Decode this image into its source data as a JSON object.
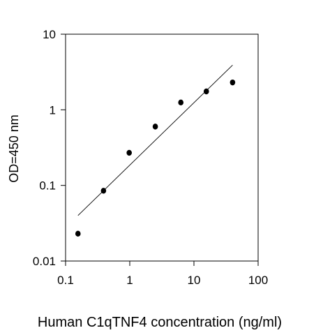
{
  "chart_data": {
    "type": "scatter",
    "title": "",
    "xlabel": "Human C1qTNF4 concentration (ng/ml)",
    "ylabel": "OD=450 nm",
    "x_scale": "log",
    "y_scale": "log",
    "xlim": [
      0.1,
      100
    ],
    "ylim": [
      0.01,
      10
    ],
    "x_ticks": [
      "0.1",
      "1",
      "10",
      "100"
    ],
    "y_ticks": [
      "0.01",
      "0.1",
      "1",
      "10"
    ],
    "grid": false,
    "legend": "none",
    "marker_color": "#000000",
    "series": [
      {
        "x": [
          0.156,
          0.39,
          0.98,
          2.5,
          6.25,
          15.6,
          40
        ],
        "y": [
          0.023,
          0.085,
          0.27,
          0.6,
          1.25,
          1.75,
          2.3
        ]
      }
    ],
    "fit_line": {
      "x": [
        0.156,
        40
      ],
      "y": [
        0.04,
        3.9
      ]
    }
  }
}
